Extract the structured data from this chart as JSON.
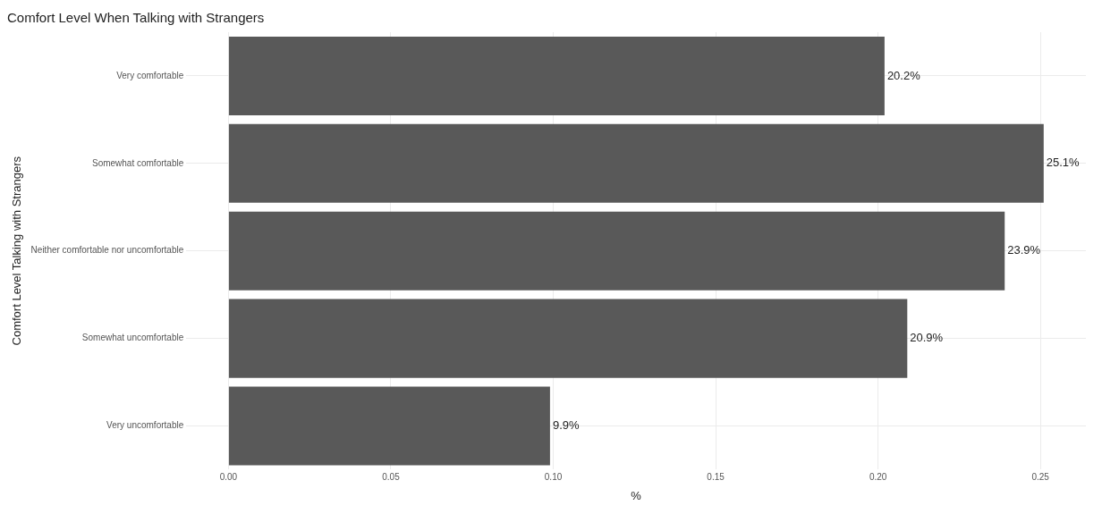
{
  "chart_data": {
    "type": "bar",
    "orientation": "horizontal",
    "title": "Comfort Level When Talking with Strangers",
    "xlabel": "%",
    "ylabel": "Comfort Level Talking with Strangers",
    "categories": [
      "Very comfortable",
      "Somewhat comfortable",
      "Neither comfortable nor uncomfortable",
      "Somewhat uncomfortable",
      "Very uncomfortable"
    ],
    "values": [
      0.202,
      0.251,
      0.239,
      0.209,
      0.099
    ],
    "value_labels": [
      "20.2%",
      "25.1%",
      "23.9%",
      "20.9%",
      "9.9%"
    ],
    "color": "#595959",
    "xlim": [
      -0.013,
      0.264
    ],
    "xticks": [
      {
        "value": 0,
        "label": "0.00"
      },
      {
        "value": 0.05,
        "label": "0.05"
      },
      {
        "value": 0.1,
        "label": "0.10"
      },
      {
        "value": 0.15,
        "label": "0.15"
      },
      {
        "value": 0.2,
        "label": "0.20"
      },
      {
        "value": 0.25,
        "label": "0.25"
      }
    ],
    "grid": true,
    "legend": false
  }
}
